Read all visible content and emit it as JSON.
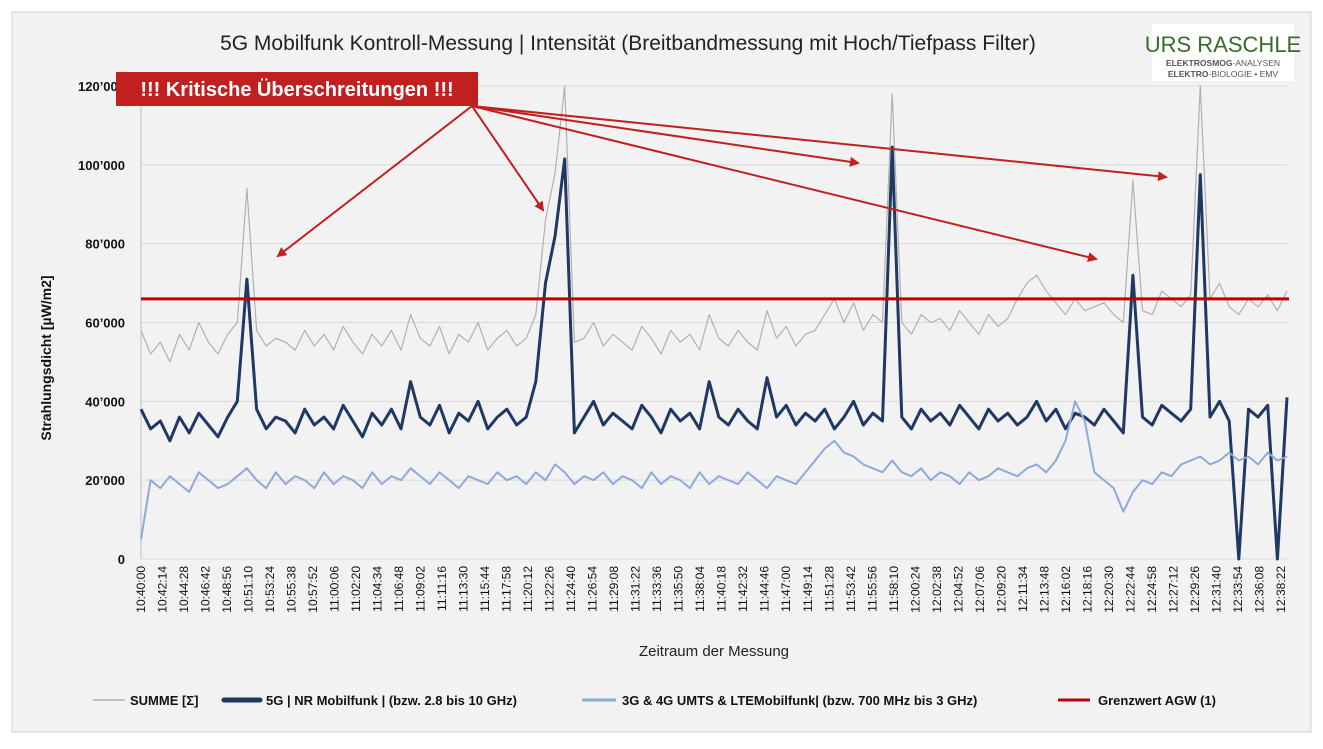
{
  "logo": {
    "name": "URS RASCHLE",
    "line1_bold": "ELEKTROSMOG",
    "line1_rest": "-ANALYSEN",
    "line2_bold": "ELEKTRO",
    "line2_rest": "-BIOLOGIE  •  EMV"
  },
  "annotation": {
    "label": "!!! Kritische Überschreitungen !!!"
  },
  "colors": {
    "summe": "#b4b0ac",
    "nr5g": "#1f3864",
    "lte": "#8eaadb",
    "limit": "#c00000",
    "annotation_bg": "#c0201f"
  },
  "chart_data": {
    "type": "line",
    "title": "5G Mobilfunk Kontroll-Messung | Intensität (Breitbandmessung mit Hoch/Tiefpass Filter)",
    "xlabel": "Zeitraum der Messung",
    "ylabel": "Strahlungsdicht [µW/m2]",
    "ylim": [
      0,
      120000
    ],
    "y_ticks": [
      0,
      20000,
      40000,
      60000,
      80000,
      100000,
      120000
    ],
    "y_tick_labels": [
      "0",
      "20’000",
      "40’000",
      "60’000",
      "80’000",
      "100’000",
      "120’000"
    ],
    "x_unit": "minutes after 10:40:00",
    "x_tick_labels": [
      "10:40:00",
      "10:42:14",
      "10:44:28",
      "10:46:42",
      "10:48:56",
      "10:51:10",
      "10:53:24",
      "10:55:38",
      "10:57:52",
      "11:00:06",
      "11:02:20",
      "11:04:34",
      "11:06:48",
      "11:09:02",
      "11:11:16",
      "11:13:30",
      "11:15:44",
      "11:17:58",
      "11:20:12",
      "11:22:26",
      "11:24:40",
      "11:26:54",
      "11:29:08",
      "11:31:22",
      "11:33:36",
      "11:35:50",
      "11:38:04",
      "11:40:18",
      "11:42:32",
      "11:44:46",
      "11:47:00",
      "11:49:14",
      "11:51:28",
      "11:53:42",
      "11:55:56",
      "11:58:10",
      "12:00:24",
      "12:02:38",
      "12:04:52",
      "12:07:06",
      "12:09:20",
      "12:11:34",
      "12:13:48",
      "12:16:02",
      "12:18:16",
      "12:20:30",
      "12:22:44",
      "12:24:58",
      "12:27:12",
      "12:29:26",
      "12:31:40",
      "12:33:54",
      "12:36:08",
      "12:38:22"
    ],
    "grid": true,
    "legend_position": "bottom",
    "limit": {
      "name": "Grenzwert AGW (1)",
      "value": 66000
    },
    "series": [
      {
        "name": "SUMME [Σ]",
        "key": "summe",
        "values": [
          58000,
          52000,
          55000,
          50000,
          57000,
          53000,
          60000,
          55000,
          52000,
          57000,
          60000,
          94000,
          58000,
          54000,
          56000,
          55000,
          53000,
          58000,
          54000,
          57000,
          53000,
          59000,
          55000,
          52000,
          57000,
          54000,
          58000,
          53000,
          62000,
          56000,
          54000,
          59000,
          52000,
          57000,
          55000,
          60000,
          53000,
          56000,
          58000,
          54000,
          56000,
          62000,
          86000,
          98000,
          120000,
          55000,
          56000,
          60000,
          54000,
          57000,
          55000,
          53000,
          59000,
          56000,
          52000,
          58000,
          55000,
          57000,
          53000,
          62000,
          56000,
          54000,
          58000,
          55000,
          53000,
          63000,
          56000,
          59000,
          54000,
          57000,
          58000,
          62000,
          66000,
          60000,
          65000,
          58000,
          62000,
          60000,
          118000,
          60000,
          57000,
          62000,
          60000,
          61000,
          58000,
          63000,
          60000,
          57000,
          62000,
          59000,
          61000,
          66000,
          70000,
          72000,
          68000,
          65000,
          62000,
          66000,
          63000,
          64000,
          65000,
          62000,
          60000,
          96000,
          63000,
          62000,
          68000,
          66000,
          64000,
          67000,
          120000,
          66000,
          70000,
          64000,
          62000,
          66000,
          64000,
          67000,
          63000,
          68000
        ]
      },
      {
        "name": "5G | NR Mobilfunk | (bzw. 2.8 bis 10 GHz)",
        "key": "nr5g",
        "values": [
          38000,
          33000,
          35000,
          30000,
          36000,
          32000,
          37000,
          34000,
          31000,
          36000,
          40000,
          71000,
          38000,
          33000,
          36000,
          35000,
          32000,
          38000,
          34000,
          36000,
          33000,
          39000,
          35000,
          31000,
          37000,
          34000,
          38000,
          33000,
          45000,
          36000,
          34000,
          39000,
          32000,
          37000,
          35000,
          40000,
          33000,
          36000,
          38000,
          34000,
          36000,
          45000,
          70000,
          82000,
          101500,
          32000,
          36000,
          40000,
          34000,
          37000,
          35000,
          33000,
          39000,
          36000,
          32000,
          38000,
          35000,
          37000,
          33000,
          45000,
          36000,
          34000,
          38000,
          35000,
          33000,
          46000,
          36000,
          39000,
          34000,
          37000,
          35000,
          38000,
          33000,
          36000,
          40000,
          34000,
          37000,
          35000,
          104500,
          36000,
          33000,
          38000,
          35000,
          37000,
          34000,
          39000,
          36000,
          33000,
          38000,
          35000,
          37000,
          34000,
          36000,
          40000,
          35000,
          38000,
          33000,
          37000,
          36000,
          34000,
          38000,
          35000,
          32000,
          72000,
          36000,
          34000,
          39000,
          37000,
          35000,
          38000,
          97500,
          36000,
          40000,
          35000,
          0,
          38000,
          36000,
          39000,
          0,
          41000
        ]
      },
      {
        "name": "3G & 4G UMTS & LTEMobilfunk| (bzw. 700 MHz bis 3 GHz)",
        "key": "lte",
        "values": [
          5000,
          20000,
          18000,
          21000,
          19000,
          17000,
          22000,
          20000,
          18000,
          19000,
          21000,
          23000,
          20000,
          18000,
          22000,
          19000,
          21000,
          20000,
          18000,
          22000,
          19000,
          21000,
          20000,
          18000,
          22000,
          19000,
          21000,
          20000,
          23000,
          21000,
          19000,
          22000,
          20000,
          18000,
          21000,
          20000,
          19000,
          22000,
          20000,
          21000,
          19000,
          22000,
          20000,
          24000,
          22000,
          19000,
          21000,
          20000,
          22000,
          19000,
          21000,
          20000,
          18000,
          22000,
          19000,
          21000,
          20000,
          18000,
          22000,
          19000,
          21000,
          20000,
          19000,
          22000,
          20000,
          18000,
          21000,
          20000,
          19000,
          22000,
          25000,
          28000,
          30000,
          27000,
          26000,
          24000,
          23000,
          22000,
          25000,
          22000,
          21000,
          23000,
          20000,
          22000,
          21000,
          19000,
          22000,
          20000,
          21000,
          23000,
          22000,
          21000,
          23000,
          24000,
          22000,
          25000,
          30000,
          40000,
          35000,
          22000,
          20000,
          18000,
          12000,
          17000,
          20000,
          19000,
          22000,
          21000,
          24000,
          25000,
          26000,
          24000,
          25000,
          27000,
          25000,
          26000,
          24000,
          27000,
          25000,
          26000
        ]
      }
    ]
  }
}
